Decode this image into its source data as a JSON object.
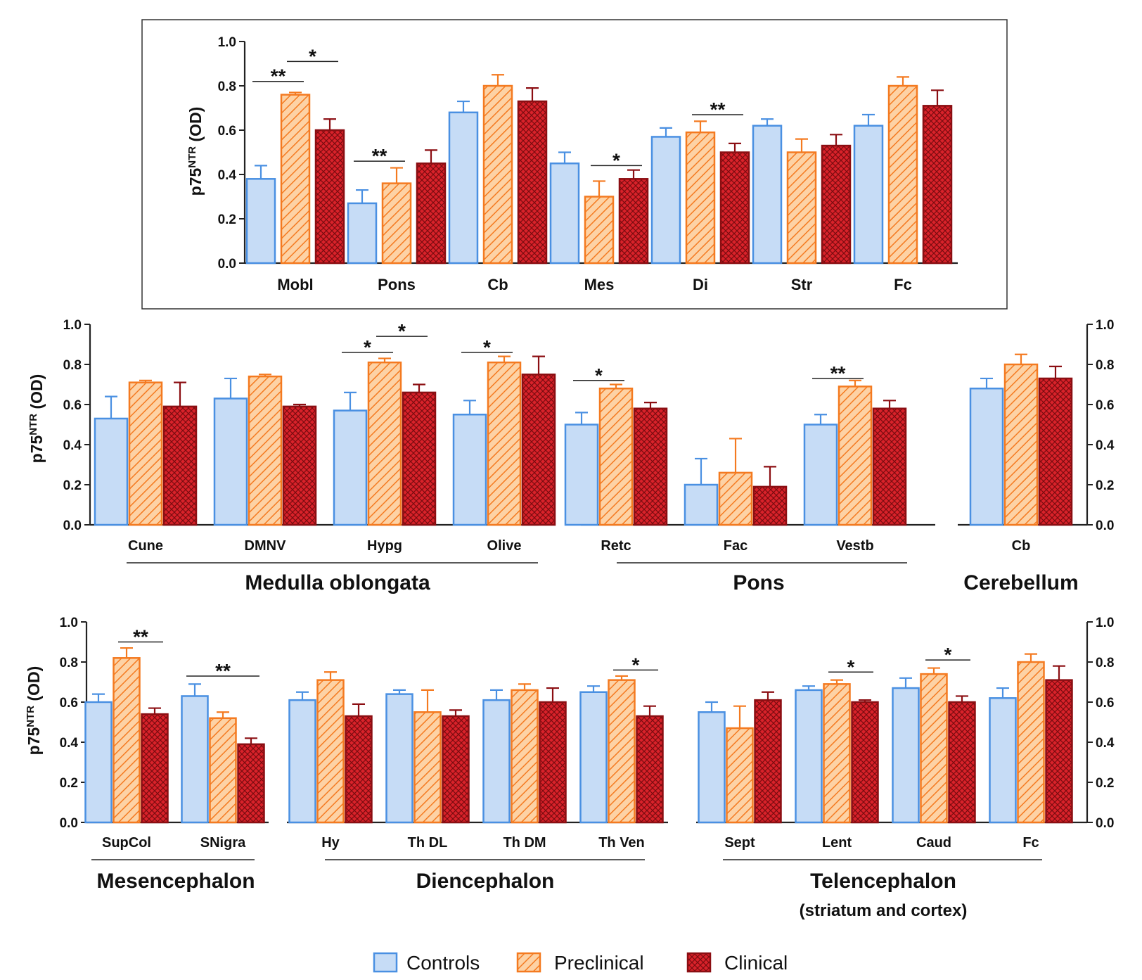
{
  "colors": {
    "controls_fill": "#c6dcf6",
    "controls_stroke": "#4a90e2",
    "preclinical_fill": "#fdd2a5",
    "preclinical_stroke": "#f47a20",
    "clinical_fill": "#d9222a",
    "clinical_stroke": "#8b0e12",
    "axis": "#222222"
  },
  "legend": [
    {
      "key": "controls",
      "label": "Controls"
    },
    {
      "key": "preclinical",
      "label": "Preclinical"
    },
    {
      "key": "clinical",
      "label": "Clinical"
    }
  ],
  "chart_data": [
    {
      "id": "overview",
      "type": "bar",
      "ylabel": "p75",
      "ylabel_sup": "NTR",
      "ylabel_suffix": " (OD)",
      "ylim": [
        0,
        1.0
      ],
      "yticks": [
        "0.0",
        "0.2",
        "0.4",
        "0.6",
        "0.8",
        "1.0"
      ],
      "categories": [
        "Mobl",
        "Pons",
        "Cb",
        "Mes",
        "Di",
        "Str",
        "Fc"
      ],
      "series": [
        {
          "name": "Controls",
          "values": [
            0.38,
            0.27,
            0.68,
            0.45,
            0.57,
            0.62,
            0.62
          ],
          "errors": [
            0.06,
            0.06,
            0.05,
            0.05,
            0.04,
            0.03,
            0.05
          ]
        },
        {
          "name": "Preclinical",
          "values": [
            0.76,
            0.36,
            0.8,
            0.3,
            0.59,
            0.5,
            0.8
          ],
          "errors": [
            0.01,
            0.07,
            0.05,
            0.07,
            0.05,
            0.06,
            0.04
          ]
        },
        {
          "name": "Clinical",
          "values": [
            0.6,
            0.45,
            0.73,
            0.38,
            0.5,
            0.53,
            0.71
          ],
          "errors": [
            0.05,
            0.06,
            0.06,
            0.04,
            0.04,
            0.05,
            0.07
          ]
        }
      ],
      "significance": [
        {
          "label": "**",
          "cat": 0,
          "from": 0,
          "to": 1,
          "y": 0.82
        },
        {
          "label": "*",
          "cat": 0,
          "from": 1,
          "to": 2,
          "y": 0.91
        },
        {
          "label": "**",
          "cat": 1,
          "from": 0,
          "to": 1,
          "y": 0.46
        },
        {
          "label": "*",
          "cat": 3,
          "from": 1,
          "to": 2,
          "y": 0.44
        },
        {
          "label": "**",
          "cat": 4,
          "from": 1,
          "to": 2,
          "y": 0.67
        }
      ]
    },
    {
      "id": "medulla",
      "type": "bar",
      "region": "Medulla oblongata",
      "ylabel": "p75",
      "ylabel_sup": "NTR",
      "ylabel_suffix": " (OD)",
      "ylim": [
        0,
        1.0
      ],
      "yticks": [
        "0.0",
        "0.2",
        "0.4",
        "0.6",
        "0.8",
        "1.0"
      ],
      "categories": [
        "Cune",
        "DMNV",
        "Hypg",
        "Olive"
      ],
      "series": [
        {
          "name": "Controls",
          "values": [
            0.53,
            0.63,
            0.57,
            0.55
          ],
          "errors": [
            0.11,
            0.1,
            0.09,
            0.07
          ]
        },
        {
          "name": "Preclinical",
          "values": [
            0.71,
            0.74,
            0.81,
            0.81
          ],
          "errors": [
            0.01,
            0.01,
            0.02,
            0.03
          ]
        },
        {
          "name": "Clinical",
          "values": [
            0.59,
            0.59,
            0.66,
            0.75
          ],
          "errors": [
            0.12,
            0.01,
            0.04,
            0.09
          ]
        }
      ],
      "significance": [
        {
          "label": "*",
          "cat": 2,
          "from": 0,
          "to": 1,
          "y": 0.86
        },
        {
          "label": "*",
          "cat": 2,
          "from": 1,
          "to": 2,
          "y": 0.94
        },
        {
          "label": "*",
          "cat": 3,
          "from": 0,
          "to": 1,
          "y": 0.86
        }
      ]
    },
    {
      "id": "pons",
      "type": "bar",
      "region": "Pons",
      "ylim": [
        0,
        1.0
      ],
      "categories": [
        "Retc",
        "Fac",
        "Vestb"
      ],
      "series": [
        {
          "name": "Controls",
          "values": [
            0.5,
            0.2,
            0.5
          ],
          "errors": [
            0.06,
            0.13,
            0.05
          ]
        },
        {
          "name": "Preclinical",
          "values": [
            0.68,
            0.26,
            0.69
          ],
          "errors": [
            0.02,
            0.17,
            0.03
          ]
        },
        {
          "name": "Clinical",
          "values": [
            0.58,
            0.19,
            0.58
          ],
          "errors": [
            0.03,
            0.1,
            0.04
          ]
        }
      ],
      "significance": [
        {
          "label": "*",
          "cat": 0,
          "from": 0,
          "to": 1,
          "y": 0.72
        },
        {
          "label": "**",
          "cat": 2,
          "from": 0,
          "to": 1,
          "y": 0.73
        }
      ]
    },
    {
      "id": "cerebellum",
      "type": "bar",
      "region": "Cerebellum",
      "ylim": [
        0,
        1.0
      ],
      "yticks": [
        "0.0",
        "0.2",
        "0.4",
        "0.6",
        "0.8",
        "1.0"
      ],
      "categories": [
        "Cb"
      ],
      "series": [
        {
          "name": "Controls",
          "values": [
            0.68
          ],
          "errors": [
            0.05
          ]
        },
        {
          "name": "Preclinical",
          "values": [
            0.8
          ],
          "errors": [
            0.05
          ]
        },
        {
          "name": "Clinical",
          "values": [
            0.73
          ],
          "errors": [
            0.06
          ]
        }
      ],
      "significance": []
    },
    {
      "id": "mesencephalon",
      "type": "bar",
      "region": "Mesencephalon",
      "ylabel": "p75",
      "ylabel_sup": "NTR",
      "ylabel_suffix": " (OD)",
      "ylim": [
        0,
        1.0
      ],
      "yticks": [
        "0.0",
        "0.2",
        "0.4",
        "0.6",
        "0.8",
        "1.0"
      ],
      "categories": [
        "SupCol",
        "SNigra"
      ],
      "series": [
        {
          "name": "Controls",
          "values": [
            0.6,
            0.63
          ],
          "errors": [
            0.04,
            0.06
          ]
        },
        {
          "name": "Preclinical",
          "values": [
            0.82,
            0.52
          ],
          "errors": [
            0.05,
            0.03
          ]
        },
        {
          "name": "Clinical",
          "values": [
            0.54,
            0.39
          ],
          "errors": [
            0.03,
            0.03
          ]
        }
      ],
      "significance": [
        {
          "label": "**",
          "cat": 0,
          "from": 1,
          "to": 2,
          "y": 0.9
        },
        {
          "label": "**",
          "cat": 1,
          "from": 0,
          "to": 2,
          "y": 0.73
        }
      ]
    },
    {
      "id": "diencephalon",
      "type": "bar",
      "region": "Diencephalon",
      "ylim": [
        0,
        1.0
      ],
      "categories": [
        "Hy",
        "Th DL",
        "Th DM",
        "Th Ven"
      ],
      "series": [
        {
          "name": "Controls",
          "values": [
            0.61,
            0.64,
            0.61,
            0.65
          ],
          "errors": [
            0.04,
            0.02,
            0.05,
            0.03
          ]
        },
        {
          "name": "Preclinical",
          "values": [
            0.71,
            0.55,
            0.66,
            0.71
          ],
          "errors": [
            0.04,
            0.11,
            0.03,
            0.02
          ]
        },
        {
          "name": "Clinical",
          "values": [
            0.53,
            0.53,
            0.6,
            0.53
          ],
          "errors": [
            0.06,
            0.03,
            0.07,
            0.05
          ]
        }
      ],
      "significance": [
        {
          "label": "*",
          "cat": 3,
          "from": 1,
          "to": 2,
          "y": 0.76
        }
      ]
    },
    {
      "id": "telencephalon",
      "type": "bar",
      "region": "Telencephalon",
      "region_sub": "(striatum and cortex)",
      "ylim": [
        0,
        1.0
      ],
      "yticks": [
        "0.0",
        "0.2",
        "0.4",
        "0.6",
        "0.8",
        "1.0"
      ],
      "categories": [
        "Sept",
        "Lent",
        "Caud",
        "Fc"
      ],
      "series": [
        {
          "name": "Controls",
          "values": [
            0.55,
            0.66,
            0.67,
            0.62
          ],
          "errors": [
            0.05,
            0.02,
            0.05,
            0.05
          ]
        },
        {
          "name": "Preclinical",
          "values": [
            0.47,
            0.69,
            0.74,
            0.8
          ],
          "errors": [
            0.11,
            0.02,
            0.03,
            0.04
          ]
        },
        {
          "name": "Clinical",
          "values": [
            0.61,
            0.6,
            0.6,
            0.71
          ],
          "errors": [
            0.04,
            0.01,
            0.03,
            0.07
          ]
        }
      ],
      "significance": [
        {
          "label": "*",
          "cat": 1,
          "from": 1,
          "to": 2,
          "y": 0.75
        },
        {
          "label": "*",
          "cat": 2,
          "from": 1,
          "to": 2,
          "y": 0.81
        }
      ]
    }
  ]
}
